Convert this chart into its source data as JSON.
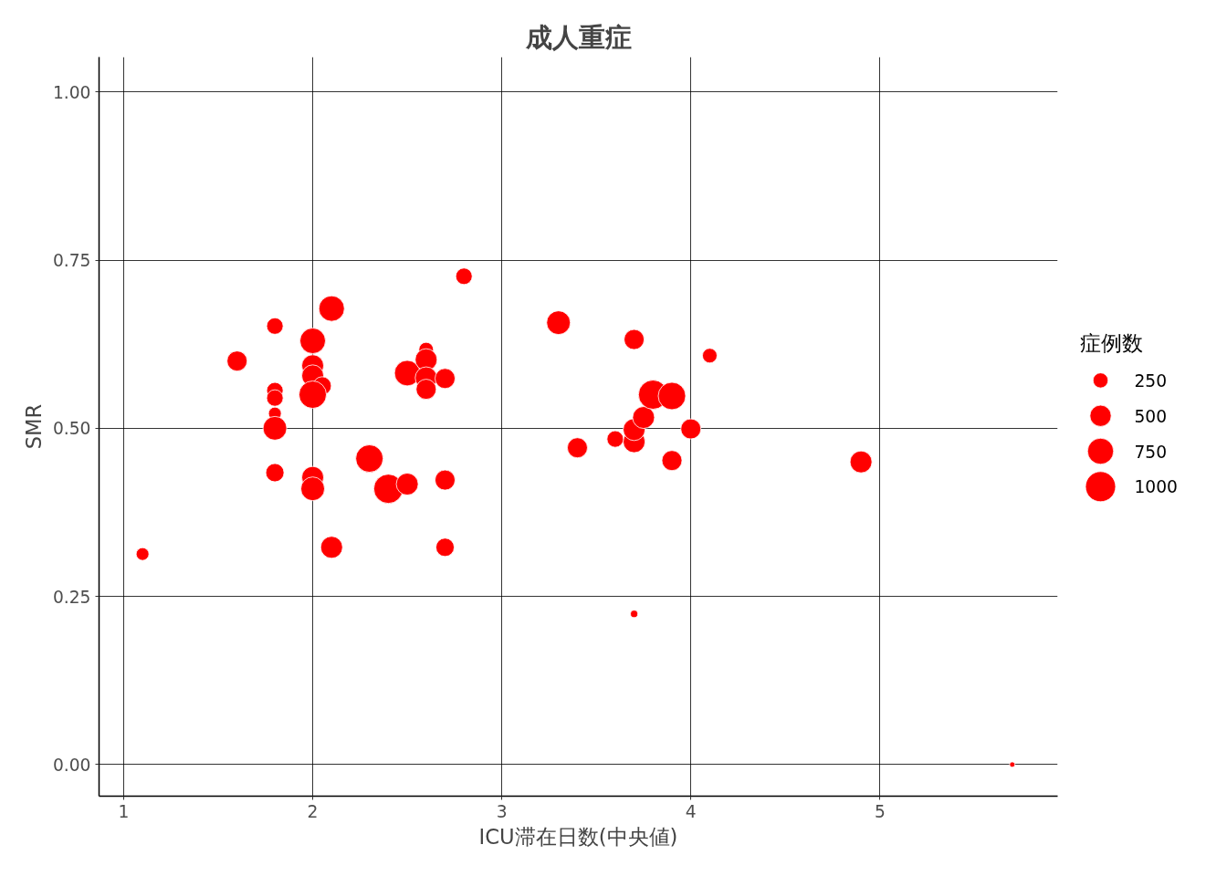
{
  "chart_data": {
    "type": "bubble",
    "title": "成人重症",
    "xlabel": "ICU滞在日数(中央値)",
    "ylabel": "SMR",
    "legend_title": "症例数",
    "color": "#ff0000",
    "marker": "circle",
    "grid": true,
    "xlim": [
      0.87,
      5.94
    ],
    "ylim": [
      -0.047,
      1.052
    ],
    "xticks": [
      1,
      2,
      3,
      4,
      5
    ],
    "yticks": [
      {
        "value": 0,
        "label": "0.00"
      },
      {
        "value": 0.25,
        "label": "0.25"
      },
      {
        "value": 0.5,
        "label": "0.50"
      },
      {
        "value": 0.75,
        "label": "0.75"
      },
      {
        "value": 1,
        "label": "1.00"
      }
    ],
    "size_legend": [
      250,
      500,
      750,
      1000
    ],
    "x": [
      1.1,
      1.6,
      1.8,
      1.8,
      1.8,
      1.8,
      1.8,
      1.8,
      2.0,
      2.0,
      2.0,
      2.05,
      2.0,
      2.0,
      2.0,
      2.1,
      2.1,
      2.3,
      2.4,
      2.5,
      2.5,
      2.6,
      2.6,
      2.6,
      2.6,
      2.7,
      2.7,
      2.7,
      2.8,
      3.3,
      3.4,
      3.6,
      3.7,
      3.7,
      3.7,
      3.75,
      3.8,
      3.9,
      3.9,
      4.0,
      4.1,
      3.7,
      4.9,
      5.7
    ],
    "values": [
      0.313,
      0.6,
      0.652,
      0.556,
      0.545,
      0.522,
      0.5,
      0.434,
      0.63,
      0.593,
      0.578,
      0.563,
      0.55,
      0.427,
      0.41,
      0.678,
      0.323,
      0.455,
      0.41,
      0.582,
      0.417,
      0.617,
      0.602,
      0.575,
      0.558,
      0.574,
      0.423,
      0.323,
      0.726,
      0.657,
      0.471,
      0.484,
      0.632,
      0.48,
      0.498,
      0.516,
      0.55,
      0.548,
      0.452,
      0.499,
      0.608,
      0.224,
      0.45,
      0.0
    ],
    "sizes": [
      180,
      445,
      300,
      300,
      300,
      180,
      620,
      370,
      720,
      530,
      530,
      370,
      830,
      530,
      620,
      720,
      530,
      830,
      940,
      720,
      530,
      235,
      530,
      530,
      445,
      445,
      445,
      370,
      300,
      620,
      445,
      300,
      445,
      530,
      530,
      530,
      940,
      830,
      445,
      445,
      235,
      59,
      530,
      33
    ]
  }
}
